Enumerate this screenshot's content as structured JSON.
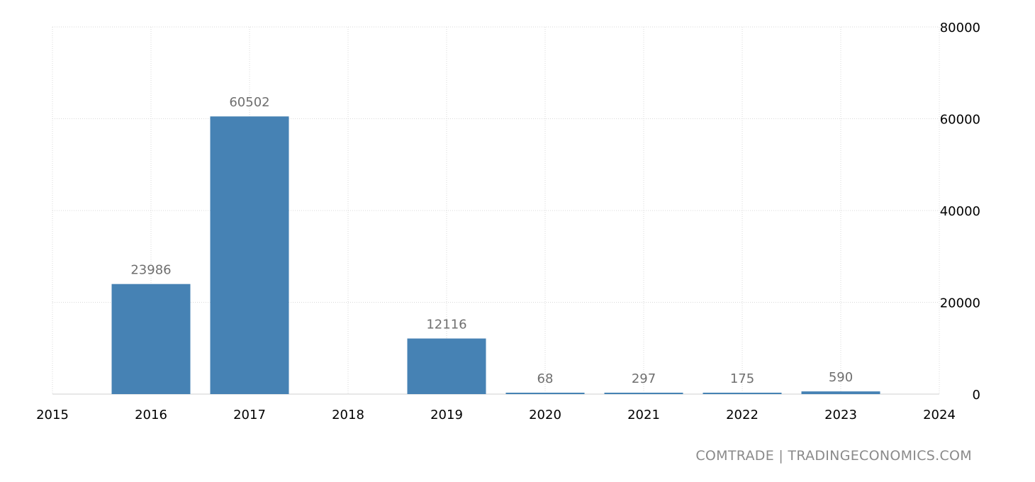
{
  "chart_data": {
    "type": "bar",
    "categories": [
      "2016",
      "2017",
      "2018",
      "2019",
      "2020",
      "2021",
      "2022",
      "2023"
    ],
    "values": [
      23986,
      60502,
      null,
      12116,
      68,
      297,
      175,
      590
    ],
    "data_labels": [
      "23986",
      "60502",
      "",
      "12116",
      "68",
      "297",
      "175",
      "590"
    ],
    "x_ticks": [
      "2015",
      "2016",
      "2017",
      "2018",
      "2019",
      "2020",
      "2021",
      "2022",
      "2023",
      "2024"
    ],
    "y_ticks": [
      "0",
      "20000",
      "40000",
      "60000",
      "80000"
    ],
    "ylim": [
      0,
      80000
    ],
    "y_axis_side": "right",
    "grid": true,
    "bar_color": "#4682b4"
  },
  "source": "COMTRADE | TRADINGECONOMICS.COM"
}
